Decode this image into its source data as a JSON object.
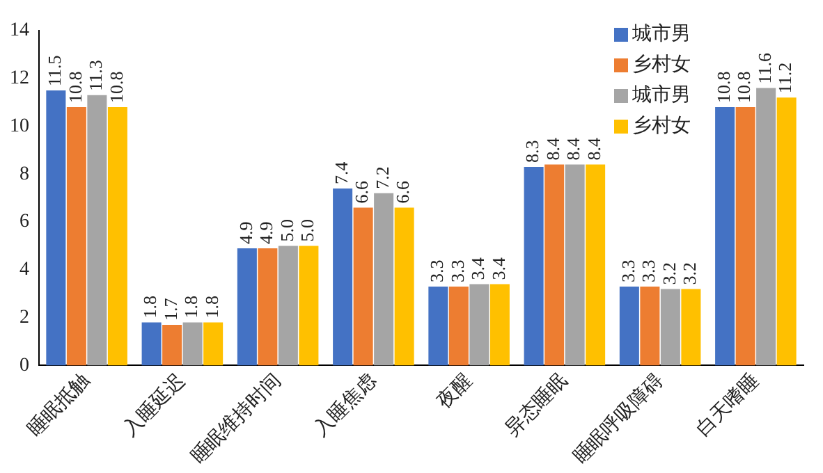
{
  "chart_data": {
    "type": "bar",
    "categories": [
      "睡眠抵触",
      "入睡延迟",
      "睡眠维持时间",
      "入睡焦虑",
      "夜醒",
      "异态睡眠",
      "睡眠呼吸障碍",
      "白天嗜睡"
    ],
    "series": [
      {
        "name": "城市男",
        "color": "#4472c4",
        "values": [
          11.5,
          1.8,
          4.9,
          7.4,
          3.3,
          8.3,
          3.3,
          10.8
        ],
        "value_labels": [
          "11.5",
          "1.8",
          "4.9",
          "7.4",
          "3.3",
          "8.3",
          "3.3",
          "10.8"
        ]
      },
      {
        "name": "乡村女",
        "color": "#ed7d31",
        "values": [
          10.8,
          1.7,
          4.9,
          6.6,
          3.3,
          8.4,
          3.3,
          10.8
        ],
        "value_labels": [
          "10.8",
          "1.7",
          "4.9",
          "6.6",
          "3.3",
          "8.4",
          "3.3",
          "10.8"
        ]
      },
      {
        "name": "城市男",
        "color": "#a5a5a5",
        "values": [
          11.3,
          1.8,
          5.0,
          7.2,
          3.4,
          8.4,
          3.2,
          11.6
        ],
        "value_labels": [
          "11.3",
          "1.8",
          "5.0",
          "7.2",
          "3.4",
          "8.4",
          "3.2",
          "11.6"
        ]
      },
      {
        "name": "乡村女",
        "color": "#ffc000",
        "values": [
          10.8,
          1.8,
          5.0,
          6.6,
          3.4,
          8.4,
          3.2,
          11.2
        ],
        "value_labels": [
          "10.8",
          "1.8",
          "5.0",
          "6.6",
          "3.4",
          "8.4",
          "3.2",
          "11.2"
        ]
      }
    ],
    "ylim": [
      0,
      14
    ],
    "yticks": [
      0,
      2,
      4,
      6,
      8,
      10,
      12,
      14
    ],
    "grid": false,
    "legend": "top right"
  }
}
